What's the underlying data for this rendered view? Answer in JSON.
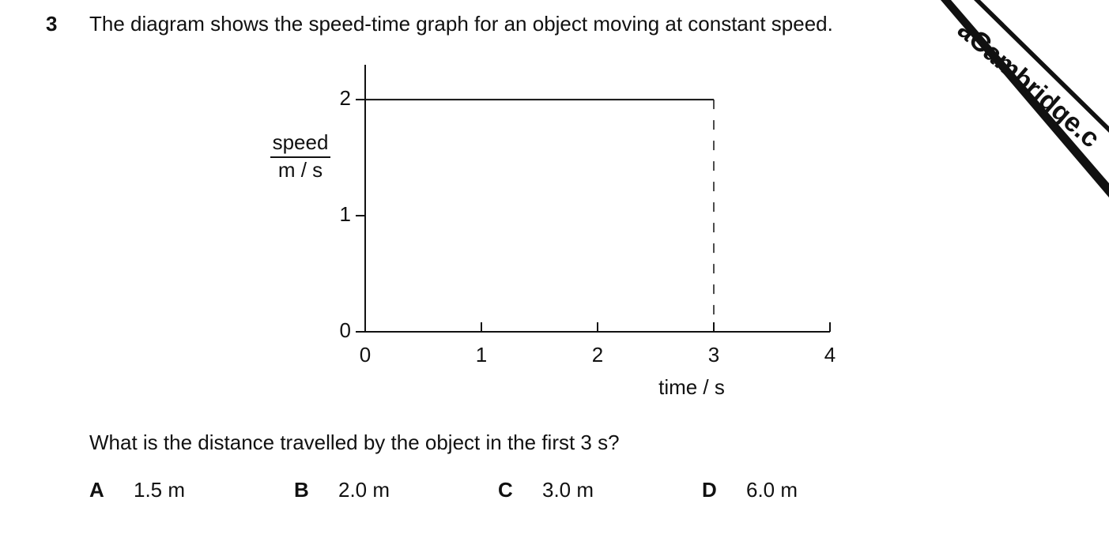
{
  "question_number": "3",
  "question_text": "The diagram shows the speed-time graph for an object moving at constant speed.",
  "chart_data": {
    "type": "line",
    "y_label_top": "speed",
    "y_label_bottom": "m / s",
    "x_label": "time / s",
    "x": [
      0,
      3
    ],
    "values": [
      2,
      2
    ],
    "color": "#111111",
    "drop_line": true,
    "xlim": [
      0,
      4
    ],
    "ylim": [
      0,
      2.3
    ],
    "xticks": [
      0,
      1,
      2,
      3,
      4
    ],
    "yticks": [
      0,
      1,
      2
    ]
  },
  "question_prompt": "What is the distance travelled by the object in the first 3 s?",
  "options": [
    {
      "letter": "A",
      "text": "1.5 m"
    },
    {
      "letter": "B",
      "text": "2.0 m"
    },
    {
      "letter": "C",
      "text": "3.0 m"
    },
    {
      "letter": "D",
      "text": "6.0 m"
    }
  ],
  "watermark": "aCambridge.c"
}
